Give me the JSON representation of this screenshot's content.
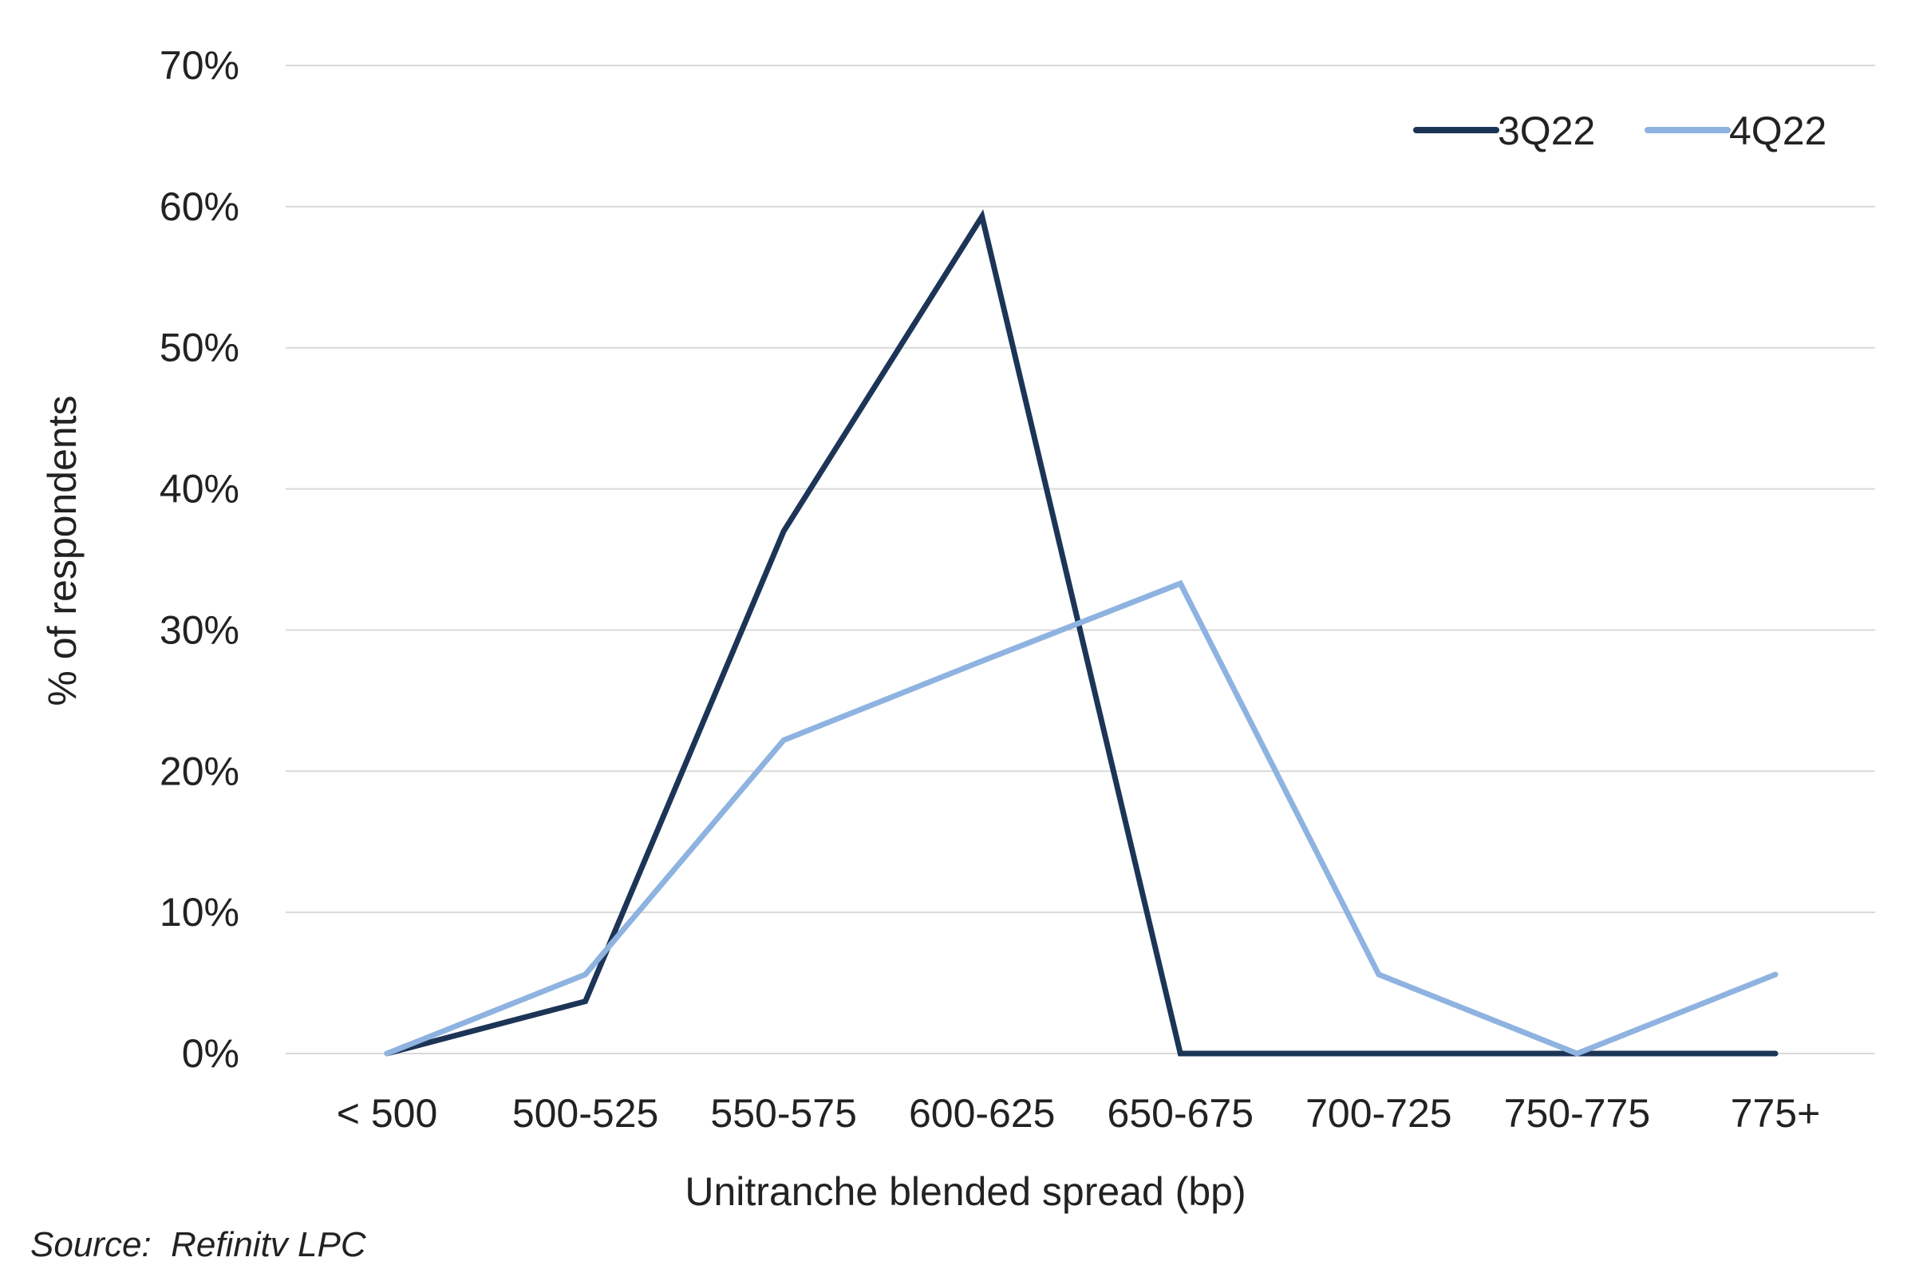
{
  "chart_data": {
    "type": "line",
    "title": "",
    "xlabel": "Unitranche blended spread (bp)",
    "ylabel": "% of respondents",
    "categories": [
      "< 500",
      "500-525",
      "550-575",
      "600-625",
      "650-675",
      "700-725",
      "750-775",
      "775+"
    ],
    "series": [
      {
        "name": "3Q22",
        "color": "#1c3557",
        "values": [
          0,
          3.7,
          37.0,
          59.3,
          0,
          0,
          0,
          0
        ]
      },
      {
        "name": "4Q22",
        "color": "#8fb3e0",
        "values": [
          0,
          5.6,
          22.2,
          27.8,
          33.3,
          5.6,
          0,
          5.6
        ]
      }
    ],
    "ylim": [
      0,
      70
    ],
    "yticks": [
      "0%",
      "10%",
      "20%",
      "30%",
      "40%",
      "50%",
      "60%",
      "70%"
    ],
    "ytick_values": [
      0,
      10,
      20,
      30,
      40,
      50,
      60,
      70
    ],
    "grid": true,
    "legend_position": "top-right"
  },
  "source": "Source:  Refinitv LPC"
}
